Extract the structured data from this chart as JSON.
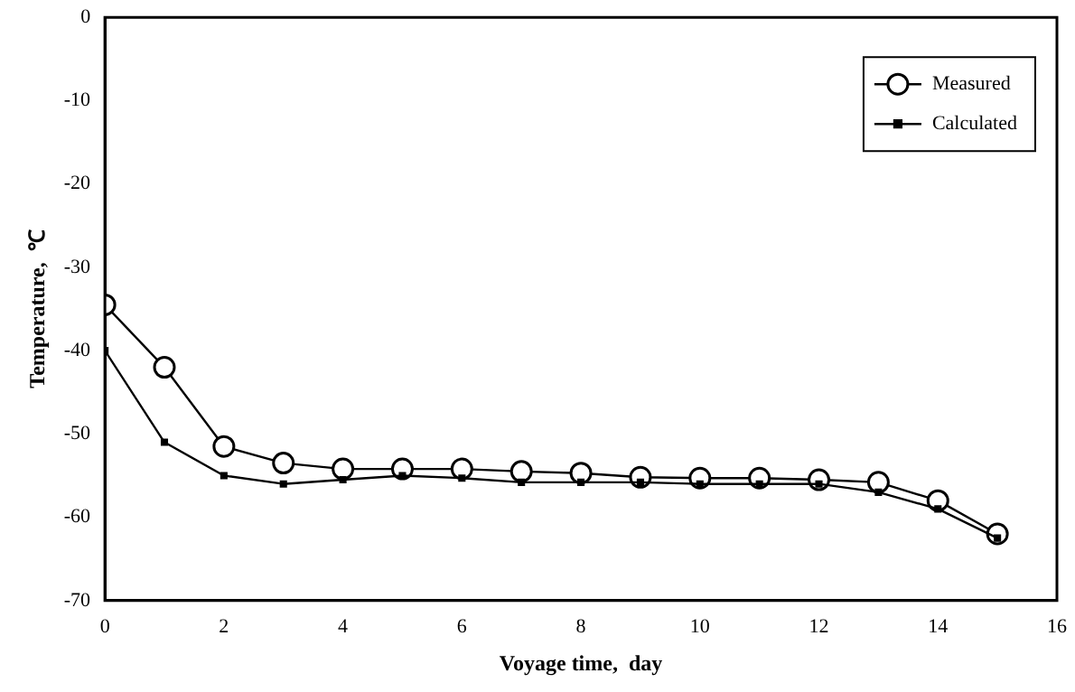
{
  "chart_data": {
    "type": "line",
    "xlabel": "Voyage time,  day",
    "ylabel": "Temperature,  ℃",
    "x": [
      0,
      1,
      2,
      3,
      4,
      5,
      6,
      7,
      8,
      9,
      10,
      11,
      12,
      13,
      14,
      15
    ],
    "series": [
      {
        "name": "Measured",
        "color": "#000000",
        "marker": "circle",
        "values": [
          -34.5,
          -42,
          -51.5,
          -53.5,
          -54.2,
          -54.2,
          -54.2,
          -54.5,
          -54.7,
          -55.2,
          -55.3,
          -55.3,
          -55.5,
          -55.8,
          -58,
          -62
        ]
      },
      {
        "name": "Calculated",
        "color": "#000000",
        "marker": "square",
        "values": [
          -40,
          -51,
          -55,
          -56,
          -55.5,
          -55,
          -55.3,
          -55.8,
          -55.8,
          -55.8,
          -56,
          -56,
          -56,
          -57,
          -59,
          -62.5
        ]
      }
    ],
    "xlim": [
      0,
      16
    ],
    "xticks": [
      0,
      2,
      4,
      6,
      8,
      10,
      12,
      14,
      16
    ],
    "ylim": [
      -70,
      0
    ],
    "yticks": [
      -70,
      -60,
      -50,
      -40,
      -30,
      -20,
      -10,
      0
    ],
    "grid": false,
    "legend": "top right",
    "line_style": "solid"
  }
}
